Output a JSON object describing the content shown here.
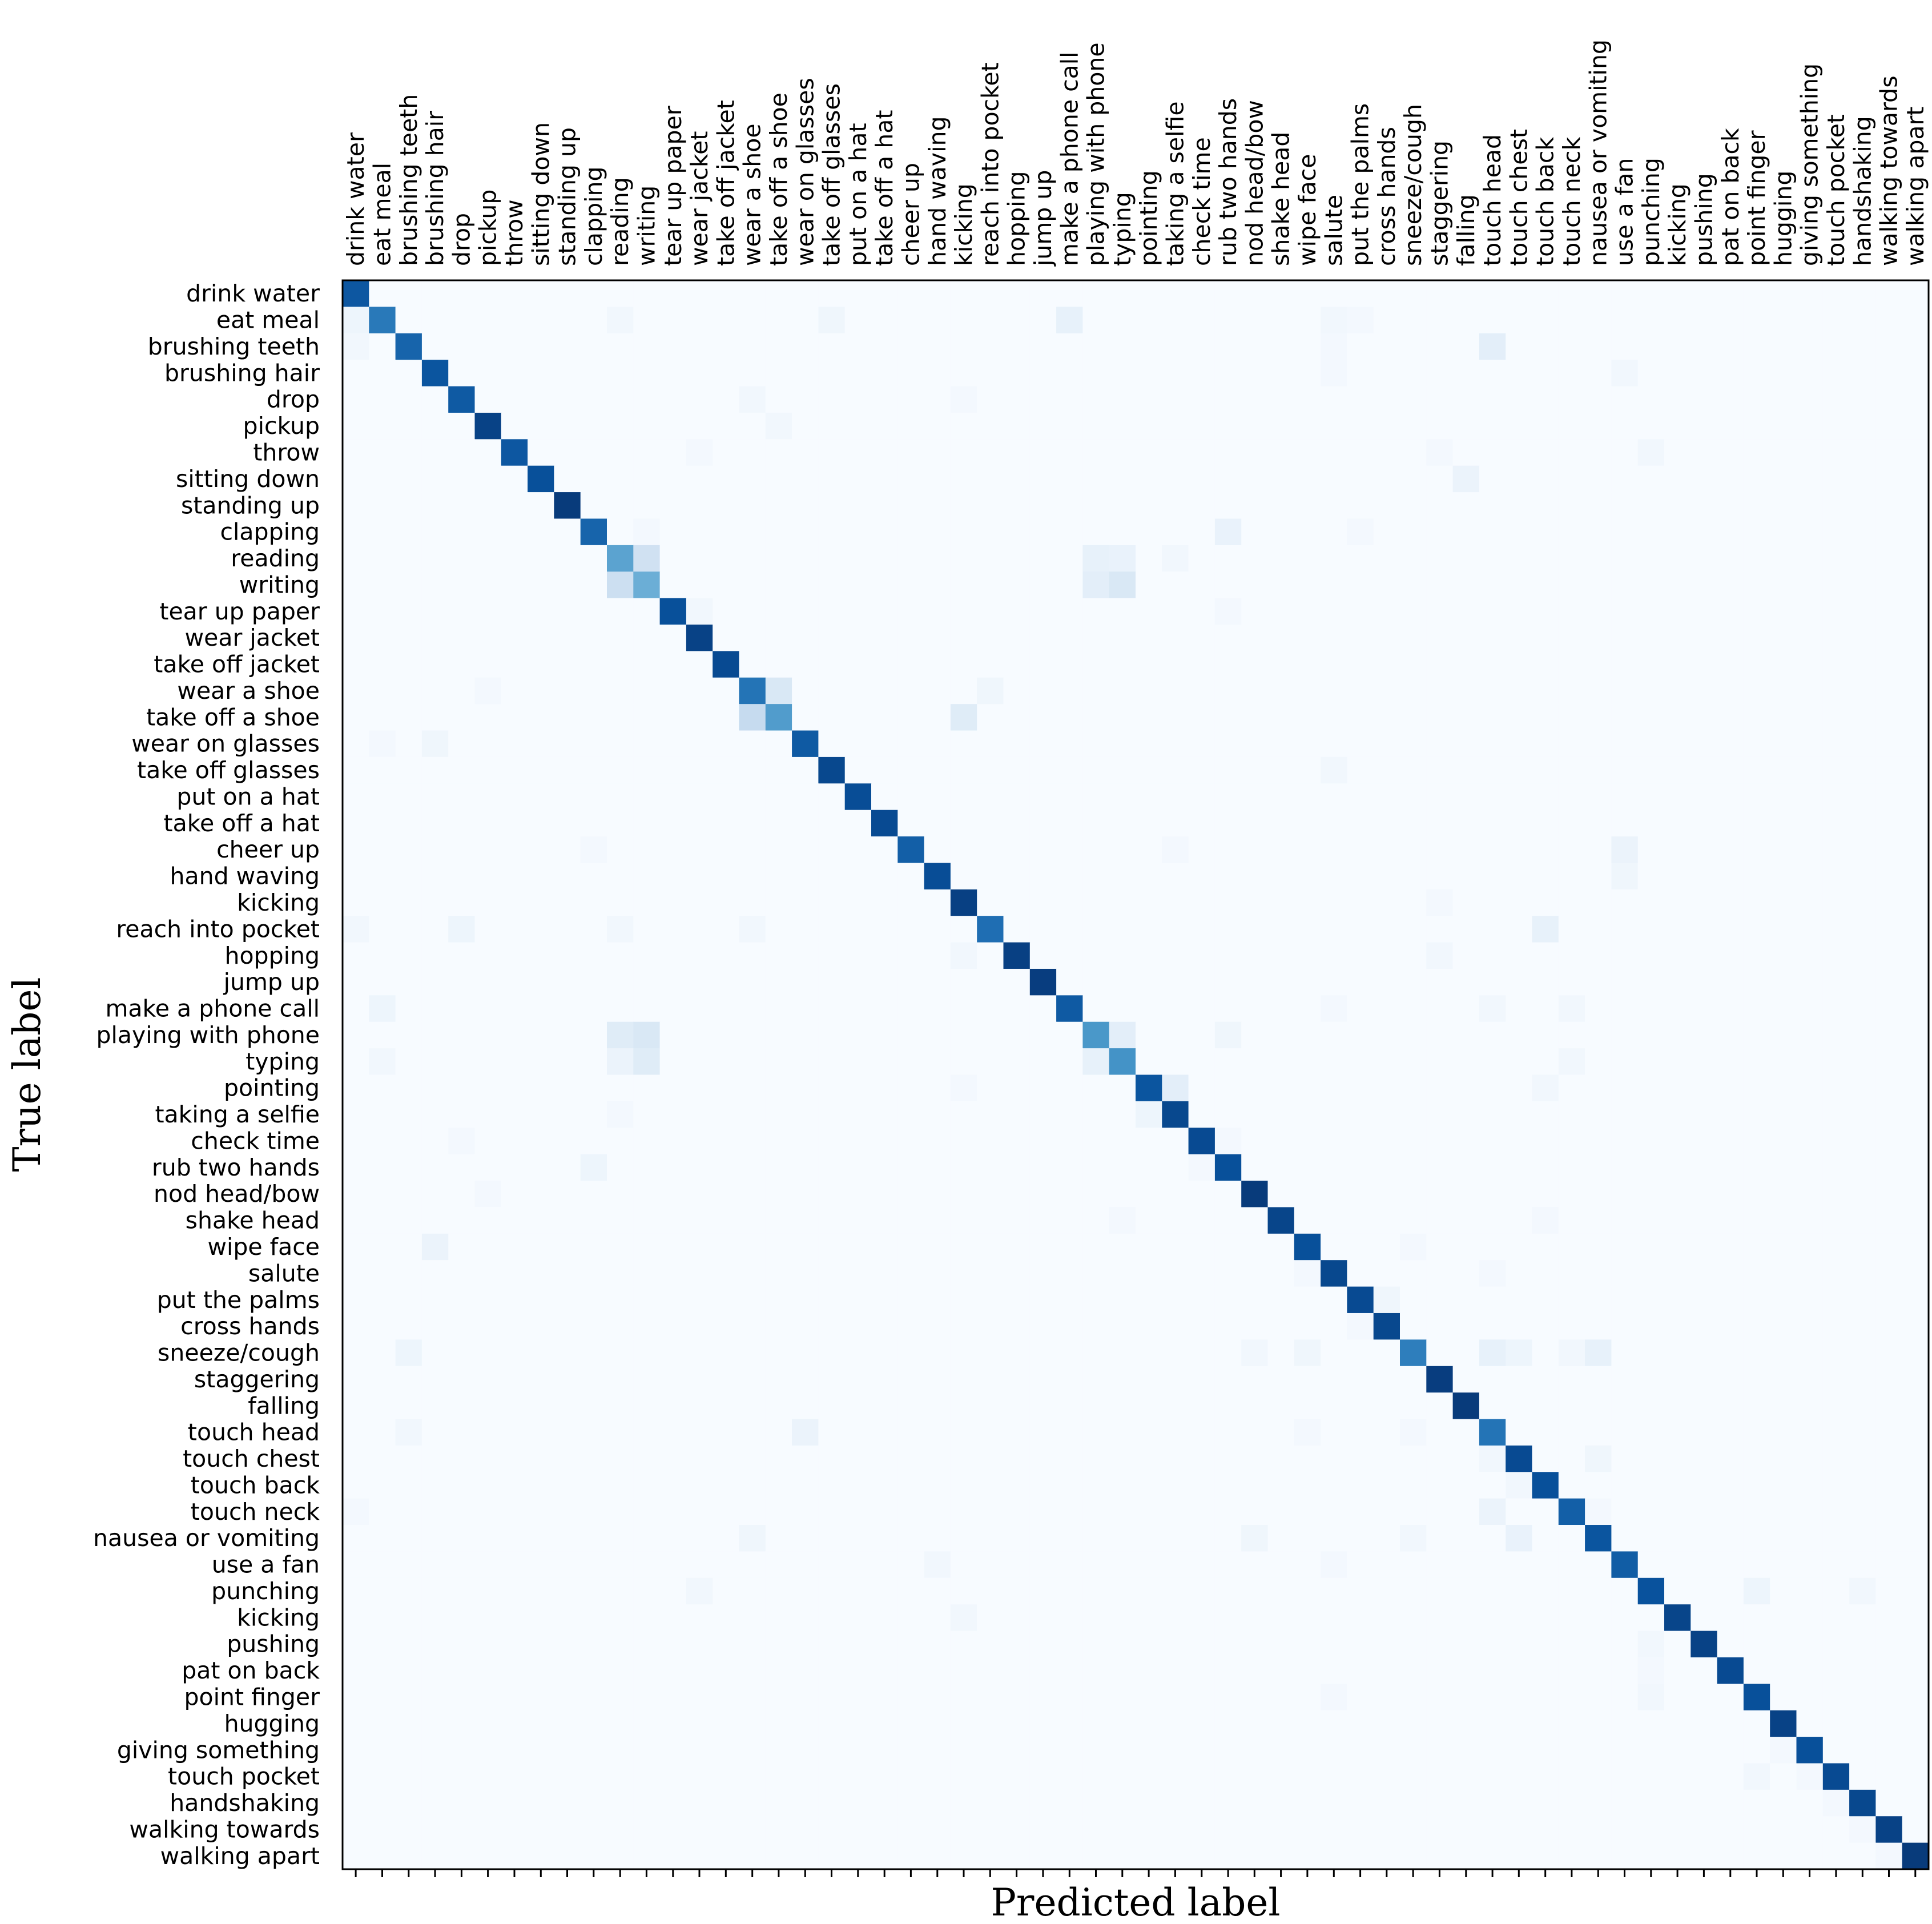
{
  "chart_data": {
    "type": "heatmap",
    "xlabel": "Predicted label",
    "ylabel": "True label",
    "colormap": "Blues",
    "colors": {
      "low": "#f7fbff",
      "high": "#08306b"
    },
    "x_tick_position": "top",
    "value_range": [
      0,
      1
    ],
    "categories": [
      "drink water",
      "eat meal",
      "brushing teeth",
      "brushing hair",
      "drop",
      "pickup",
      "throw",
      "sitting down",
      "standing up",
      "clapping",
      "reading",
      "writing",
      "tear up paper",
      "wear jacket",
      "take off jacket",
      "wear a shoe",
      "take off a shoe",
      "wear on glasses",
      "take off glasses",
      "put on a hat",
      "take off a hat",
      "cheer up",
      "hand waving",
      "kicking",
      "reach into pocket",
      "hopping",
      "jump up",
      "make a phone call",
      "playing with phone",
      "typing",
      "pointing",
      "taking a selfie",
      "check time",
      "rub two hands",
      "nod head/bow",
      "shake head",
      "wipe face",
      "salute",
      "put the palms",
      "cross hands",
      "sneeze/cough",
      "staggering",
      "falling",
      "touch head",
      "touch chest",
      "touch back",
      "touch neck",
      "nausea or vomiting",
      "use a fan",
      "punching",
      "kicking",
      "pushing",
      "pat on back",
      "point finger",
      "hugging",
      "giving something",
      "touch pocket",
      "handshaking",
      "walking towards",
      "walking apart"
    ],
    "diagonal": [
      0.85,
      0.72,
      0.8,
      0.86,
      0.84,
      0.93,
      0.85,
      0.88,
      0.96,
      0.8,
      0.55,
      0.5,
      0.88,
      0.93,
      0.9,
      0.74,
      0.58,
      0.84,
      0.91,
      0.89,
      0.9,
      0.82,
      0.89,
      0.94,
      0.76,
      0.94,
      0.95,
      0.84,
      0.6,
      0.62,
      0.86,
      0.91,
      0.9,
      0.88,
      0.96,
      0.92,
      0.88,
      0.91,
      0.9,
      0.91,
      0.7,
      0.95,
      0.96,
      0.74,
      0.9,
      0.88,
      0.82,
      0.86,
      0.83,
      0.87,
      0.92,
      0.93,
      0.9,
      0.88,
      0.93,
      0.88,
      0.9,
      0.91,
      0.93,
      0.96
    ],
    "off_diagonal": [
      [
        1,
        0,
        0.05
      ],
      [
        2,
        0,
        0.03
      ],
      [
        1,
        10,
        0.03
      ],
      [
        1,
        18,
        0.04
      ],
      [
        1,
        27,
        0.08
      ],
      [
        1,
        37,
        0.03
      ],
      [
        1,
        38,
        0.02
      ],
      [
        2,
        43,
        0.1
      ],
      [
        2,
        37,
        0.02
      ],
      [
        3,
        37,
        0.02
      ],
      [
        3,
        48,
        0.03
      ],
      [
        4,
        15,
        0.03
      ],
      [
        4,
        23,
        0.02
      ],
      [
        5,
        16,
        0.03
      ],
      [
        6,
        13,
        0.02
      ],
      [
        6,
        49,
        0.03
      ],
      [
        6,
        41,
        0.02
      ],
      [
        7,
        42,
        0.06
      ],
      [
        9,
        33,
        0.07
      ],
      [
        9,
        38,
        0.02
      ],
      [
        9,
        11,
        0.02
      ],
      [
        10,
        11,
        0.2
      ],
      [
        10,
        28,
        0.08
      ],
      [
        10,
        29,
        0.07
      ],
      [
        10,
        31,
        0.03
      ],
      [
        11,
        10,
        0.22
      ],
      [
        11,
        28,
        0.1
      ],
      [
        11,
        29,
        0.15
      ],
      [
        12,
        13,
        0.03
      ],
      [
        12,
        33,
        0.02
      ],
      [
        15,
        16,
        0.15
      ],
      [
        15,
        24,
        0.04
      ],
      [
        15,
        5,
        0.02
      ],
      [
        16,
        15,
        0.25
      ],
      [
        16,
        23,
        0.12
      ],
      [
        17,
        3,
        0.04
      ],
      [
        17,
        1,
        0.02
      ],
      [
        18,
        37,
        0.03
      ],
      [
        21,
        9,
        0.02
      ],
      [
        21,
        48,
        0.06
      ],
      [
        21,
        31,
        0.02
      ],
      [
        22,
        48,
        0.04
      ],
      [
        23,
        41,
        0.02
      ],
      [
        24,
        0,
        0.03
      ],
      [
        24,
        4,
        0.05
      ],
      [
        24,
        45,
        0.08
      ],
      [
        24,
        15,
        0.03
      ],
      [
        24,
        10,
        0.03
      ],
      [
        25,
        23,
        0.03
      ],
      [
        25,
        41,
        0.03
      ],
      [
        27,
        1,
        0.05
      ],
      [
        27,
        43,
        0.03
      ],
      [
        27,
        46,
        0.03
      ],
      [
        27,
        37,
        0.02
      ],
      [
        28,
        10,
        0.12
      ],
      [
        28,
        11,
        0.15
      ],
      [
        28,
        29,
        0.1
      ],
      [
        28,
        33,
        0.04
      ],
      [
        29,
        10,
        0.06
      ],
      [
        29,
        11,
        0.12
      ],
      [
        29,
        28,
        0.08
      ],
      [
        29,
        1,
        0.03
      ],
      [
        29,
        46,
        0.03
      ],
      [
        30,
        31,
        0.1
      ],
      [
        30,
        45,
        0.03
      ],
      [
        30,
        23,
        0.02
      ],
      [
        31,
        30,
        0.05
      ],
      [
        31,
        10,
        0.02
      ],
      [
        32,
        33,
        0.02
      ],
      [
        32,
        4,
        0.02
      ],
      [
        33,
        9,
        0.05
      ],
      [
        33,
        32,
        0.02
      ],
      [
        34,
        5,
        0.02
      ],
      [
        35,
        45,
        0.02
      ],
      [
        35,
        29,
        0.02
      ],
      [
        36,
        3,
        0.06
      ],
      [
        36,
        40,
        0.02
      ],
      [
        37,
        36,
        0.02
      ],
      [
        37,
        43,
        0.02
      ],
      [
        38,
        39,
        0.04
      ],
      [
        39,
        38,
        0.02
      ],
      [
        40,
        2,
        0.05
      ],
      [
        40,
        34,
        0.03
      ],
      [
        40,
        36,
        0.04
      ],
      [
        40,
        43,
        0.08
      ],
      [
        40,
        44,
        0.05
      ],
      [
        40,
        47,
        0.08
      ],
      [
        40,
        46,
        0.03
      ],
      [
        43,
        17,
        0.06
      ],
      [
        43,
        2,
        0.03
      ],
      [
        43,
        36,
        0.02
      ],
      [
        43,
        40,
        0.02
      ],
      [
        44,
        47,
        0.04
      ],
      [
        44,
        43,
        0.03
      ],
      [
        45,
        44,
        0.03
      ],
      [
        46,
        43,
        0.06
      ],
      [
        46,
        0,
        0.02
      ],
      [
        46,
        47,
        0.02
      ],
      [
        47,
        15,
        0.04
      ],
      [
        47,
        34,
        0.04
      ],
      [
        47,
        44,
        0.07
      ],
      [
        47,
        40,
        0.03
      ],
      [
        48,
        22,
        0.03
      ],
      [
        48,
        37,
        0.02
      ],
      [
        49,
        13,
        0.03
      ],
      [
        49,
        53,
        0.05
      ],
      [
        49,
        57,
        0.03
      ],
      [
        50,
        23,
        0.03
      ],
      [
        51,
        49,
        0.03
      ],
      [
        52,
        49,
        0.02
      ],
      [
        53,
        49,
        0.03
      ],
      [
        53,
        37,
        0.02
      ],
      [
        55,
        54,
        0.02
      ],
      [
        56,
        53,
        0.03
      ],
      [
        56,
        55,
        0.02
      ],
      [
        57,
        56,
        0.02
      ],
      [
        58,
        57,
        0.02
      ],
      [
        59,
        58,
        0.02
      ]
    ]
  }
}
